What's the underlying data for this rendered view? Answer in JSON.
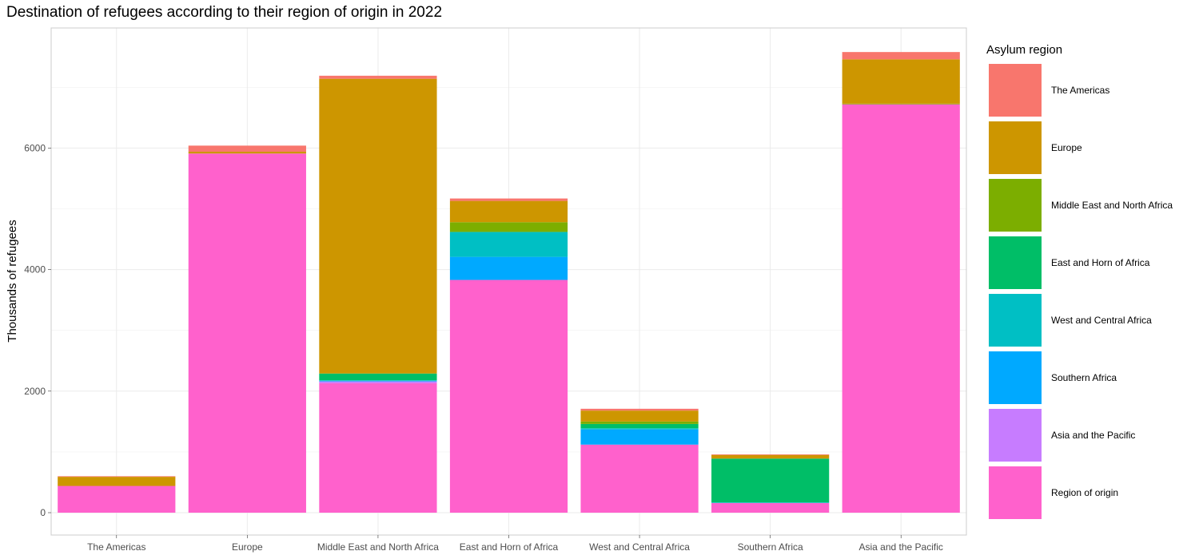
{
  "chart_data": {
    "type": "bar",
    "stacked": true,
    "title": "Destination of refugees according to their region of origin in 2022",
    "xlabel": "",
    "ylabel": "Thousands of refugees",
    "ylim": [
      0,
      7960
    ],
    "yticks": [
      0,
      2000,
      4000,
      6000
    ],
    "grid": true,
    "legend_title": "Asylum region",
    "legend_position": "right",
    "categories": [
      "The Americas",
      "Europe",
      "Middle East and North Africa",
      "East and Horn of Africa",
      "West and Central Africa",
      "Southern Africa",
      "Asia and the Pacific"
    ],
    "series": [
      {
        "name": "Region of origin",
        "color": "#FF61CC",
        "values": [
          440,
          5910,
          2130,
          3830,
          1120,
          160,
          6720
        ]
      },
      {
        "name": "Asia and the Pacific",
        "color": "#C77CFF",
        "values": [
          0,
          0,
          30,
          0,
          0,
          0,
          0
        ]
      },
      {
        "name": "Southern Africa",
        "color": "#00A9FF",
        "values": [
          0,
          0,
          10,
          380,
          250,
          0,
          0
        ]
      },
      {
        "name": "West and Central Africa",
        "color": "#00BFC4",
        "values": [
          0,
          0,
          10,
          410,
          20,
          10,
          0
        ]
      },
      {
        "name": "East and Horn of Africa",
        "color": "#00BE67",
        "values": [
          0,
          0,
          110,
          0,
          70,
          720,
          0
        ]
      },
      {
        "name": "Middle East and North Africa",
        "color": "#7CAE00",
        "values": [
          0,
          0,
          0,
          160,
          40,
          0,
          10
        ]
      },
      {
        "name": "Europe",
        "color": "#CD9600",
        "values": [
          150,
          30,
          4850,
          350,
          180,
          60,
          730
        ]
      },
      {
        "name": "The Americas",
        "color": "#F8766D",
        "values": [
          10,
          100,
          50,
          40,
          30,
          10,
          120
        ]
      }
    ],
    "legend_order": [
      "The Americas",
      "Europe",
      "Middle East and North Africa",
      "East and Horn of Africa",
      "West and Central Africa",
      "Southern Africa",
      "Asia and the Pacific",
      "Region of origin"
    ]
  }
}
